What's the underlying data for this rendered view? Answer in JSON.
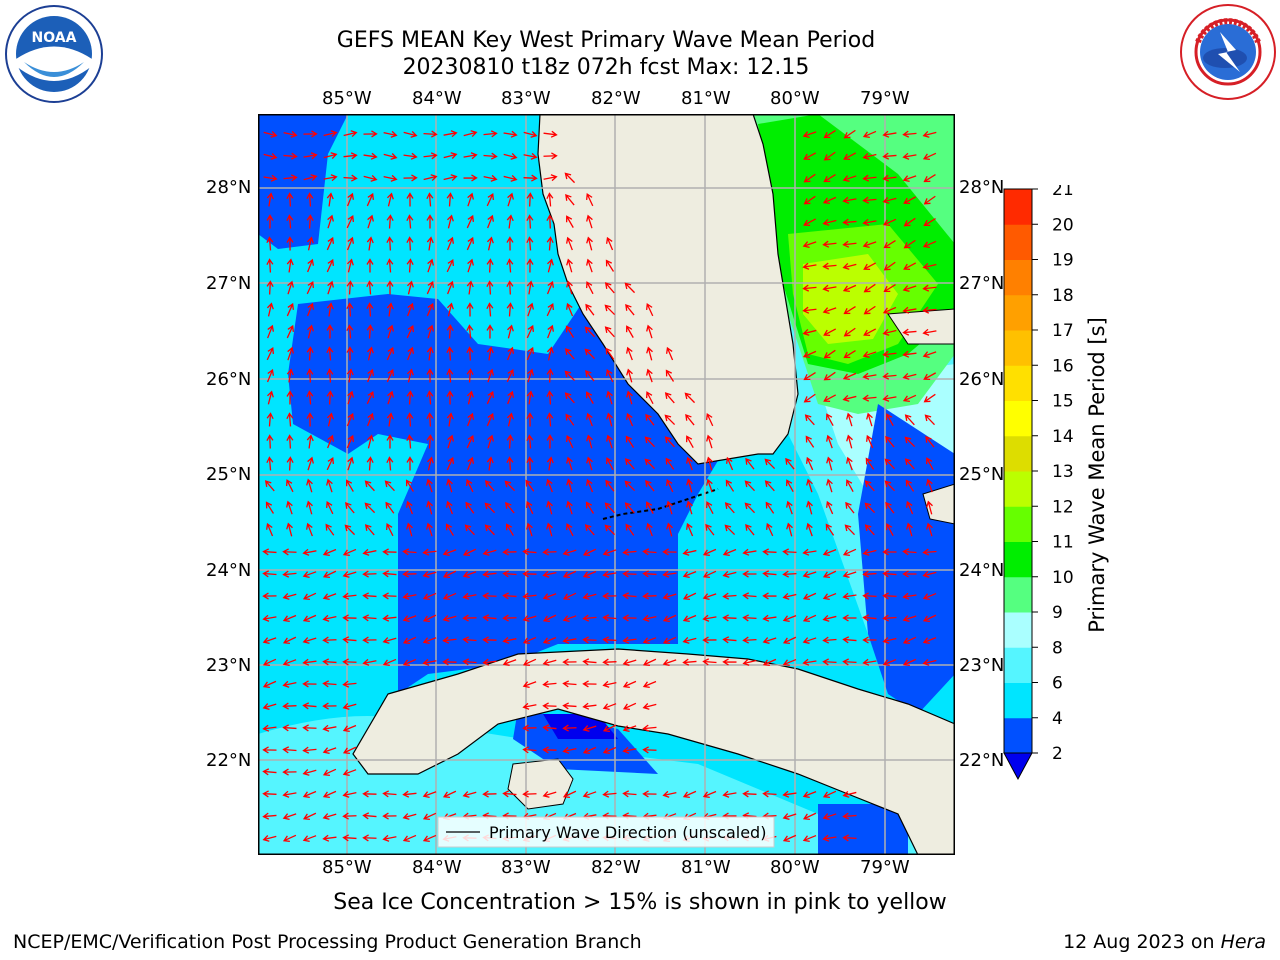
{
  "title": {
    "line1": "GEFS MEAN Key West Primary Wave Mean Period",
    "line2": "20230810 t18z 072h fcst   Max: 12.15"
  },
  "map": {
    "lon_ticks": [
      "85°W",
      "84°W",
      "83°W",
      "82°W",
      "81°W",
      "80°W",
      "79°W"
    ],
    "lat_ticks": [
      "28°N",
      "27°N",
      "26°N",
      "25°N",
      "24°N",
      "23°N",
      "22°N"
    ],
    "legend_label": "Primary Wave Direction (unscaled)"
  },
  "colorbar": {
    "label": "Primary Wave Mean Period [s]",
    "ticks": [
      "2",
      "4",
      "6",
      "8",
      "9",
      "10",
      "11",
      "12",
      "13",
      "14",
      "15",
      "16",
      "17",
      "18",
      "19",
      "20",
      "21"
    ],
    "colors": [
      "#0050ff",
      "#00e5ff",
      "#55f5ff",
      "#aaffff",
      "#55ff80",
      "#00ee00",
      "#66ff00",
      "#bbff00",
      "#dddd00",
      "#ffff00",
      "#ffe000",
      "#ffc000",
      "#ffa000",
      "#ff8000",
      "#ff5a00",
      "#ff2a00",
      "#ff0000"
    ],
    "extend_color": "#0000ee"
  },
  "notes": {
    "sea_ice": "Sea Ice Concentration > 15% is shown in pink to yellow"
  },
  "footer": {
    "left": "NCEP/EMC/Verification Post Processing Product Generation Branch",
    "date": "12 Aug 2023 on ",
    "machine": "Hera"
  },
  "logos": {
    "noaa_text": "NOAA",
    "nws_text": "NATIONAL WEATHER SERVICE"
  }
}
